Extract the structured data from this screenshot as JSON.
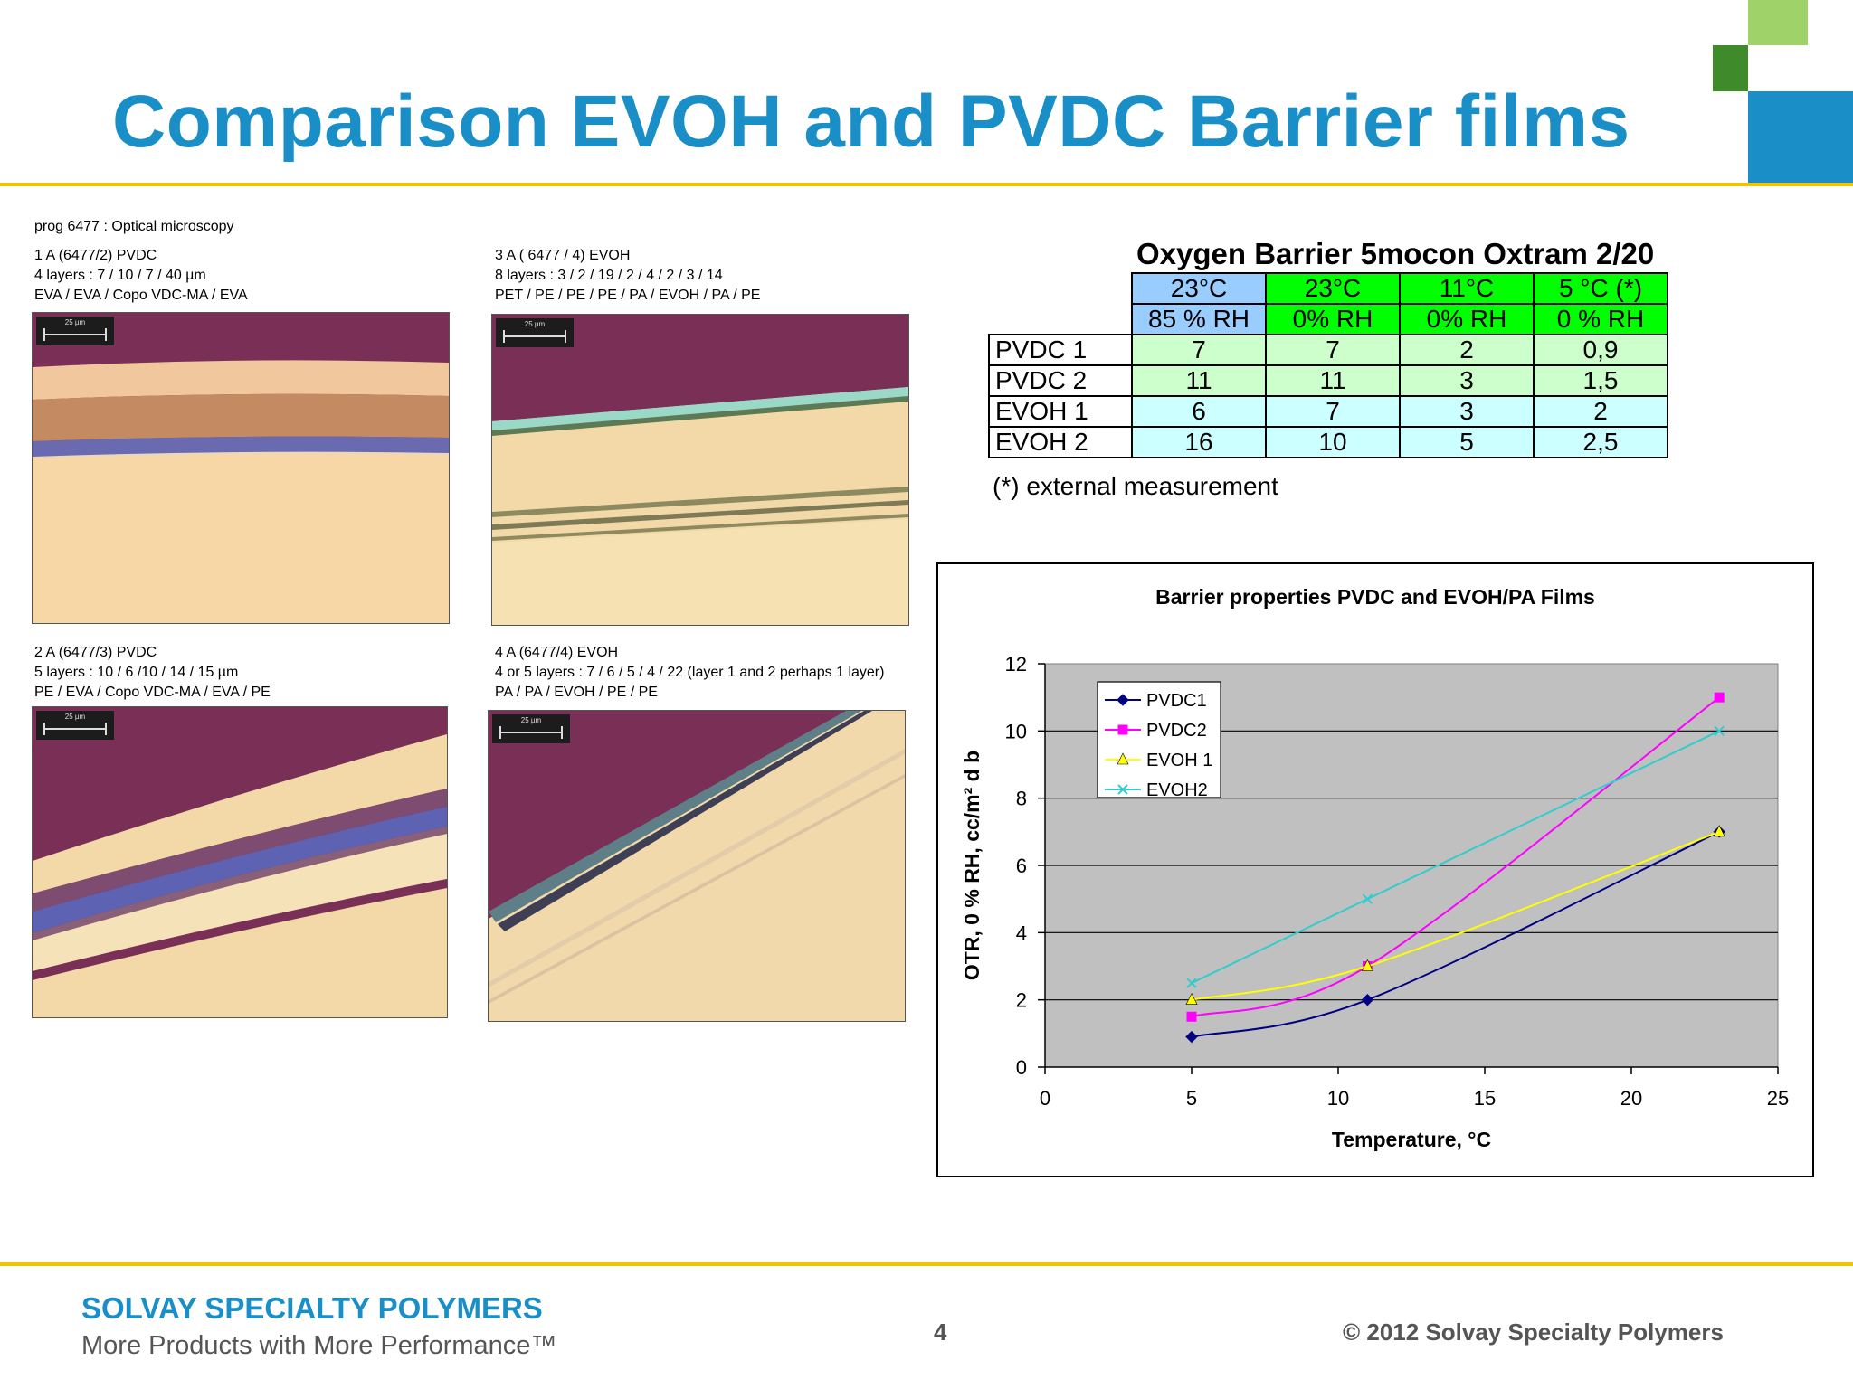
{
  "slide": {
    "title": "Comparison EVOH and PVDC Barrier films",
    "colors": {
      "title": "#1a8fc7",
      "rule": "#f2c300",
      "square_blue": "#1a8fc7",
      "square_dark_green": "#3f8a2a",
      "square_light_green": "#9fd36a"
    }
  },
  "microscopy": {
    "header": "prog 6477 : Optical microscopy",
    "scale_label": "25 µm",
    "samples": [
      {
        "lines": [
          "1 A  (6477/2) PVDC",
          "4 layers : 7 / 10 / 7 / 40 µm",
          "EVA / EVA / Copo VDC-MA / EVA"
        ]
      },
      {
        "lines": [
          "3 A ( 6477 / 4) EVOH",
          "8 layers : 3 / 2 / 19 / 2 / 4 / 2 / 3 / 14",
          "PET / PE / PE / PE / PA / EVOH  / PA / PE"
        ]
      },
      {
        "lines": [
          "2 A (6477/3) PVDC",
          "5 layers : 10 / 6 /10 / 14 / 15 µm",
          "PE / EVA / Copo VDC-MA / EVA / PE"
        ]
      },
      {
        "lines": [
          "4 A (6477/4) EVOH",
          "4 or 5 layers : 7 / 6 / 5 / 4 / 22  (layer 1 and 2 perhaps 1 layer)",
          "PA / PA / EVOH / PE / PE"
        ]
      }
    ]
  },
  "otr_table": {
    "title": "Oxygen Barrier 5mocon Oxtram 2/20",
    "temps": [
      "23°C",
      "23°C",
      "11°C",
      "5 °C (*)"
    ],
    "rh": [
      "85 % RH",
      "0% RH",
      "0% RH",
      "0 % RH"
    ],
    "rows": [
      {
        "label": "PVDC 1",
        "values": [
          "7",
          "7",
          "2",
          "0,9"
        ]
      },
      {
        "label": "PVDC 2",
        "values": [
          "11",
          "11",
          "3",
          "1,5"
        ]
      },
      {
        "label": "EVOH 1",
        "values": [
          "6",
          "7",
          "3",
          "2"
        ]
      },
      {
        "label": "EVOH 2",
        "values": [
          "16",
          "10",
          "5",
          "2,5"
        ]
      }
    ],
    "note": "(*) external measurement"
  },
  "chart_data": {
    "type": "line",
    "title": "Barrier properties PVDC and EVOH/PA Films",
    "xlabel": "Temperature, °C",
    "ylabel": "OTR, 0 % RH, cc/m² d b",
    "xlim": [
      0,
      25
    ],
    "ylim": [
      0,
      12
    ],
    "xticks": [
      "0",
      "5",
      "10",
      "15",
      "20",
      "25"
    ],
    "yticks": [
      "0",
      "2",
      "4",
      "6",
      "8",
      "10",
      "12"
    ],
    "grid": true,
    "legend": "top-left",
    "plot_background": "#c0c0c0",
    "series": [
      {
        "name": "PVDC1",
        "color": "#000080",
        "marker": "diamond",
        "x": [
          5,
          11,
          23
        ],
        "y": [
          0.9,
          2,
          7
        ]
      },
      {
        "name": "PVDC2",
        "color": "#ff00ff",
        "marker": "square",
        "x": [
          5,
          11,
          23
        ],
        "y": [
          1.5,
          3,
          11
        ]
      },
      {
        "name": "EVOH 1",
        "color": "#ffff00",
        "marker": "triangle",
        "x": [
          5,
          11,
          23
        ],
        "y": [
          2,
          3,
          7
        ]
      },
      {
        "name": "EVOH2",
        "color": "#33cccc",
        "marker": "x",
        "x": [
          5,
          11,
          23
        ],
        "y": [
          2.5,
          5,
          10
        ]
      }
    ]
  },
  "footer": {
    "brand": "SOLVAY SPECIALTY POLYMERS",
    "tagline": "More Products with More Performance™",
    "page": "4",
    "copyright": "© 2012 Solvay Specialty Polymers"
  }
}
